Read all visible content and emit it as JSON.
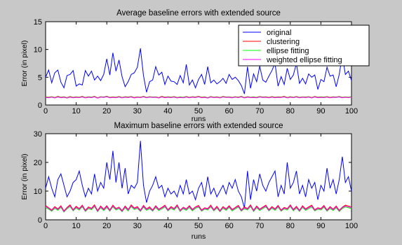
{
  "chart_data": [
    {
      "type": "line",
      "title": "Average baseline errors with extended source",
      "xlabel": "runs",
      "ylabel": "Error (in pixel)",
      "xlim": [
        0,
        100
      ],
      "ylim": [
        0,
        15
      ],
      "xticks": [
        "0",
        "10",
        "20",
        "30",
        "40",
        "50",
        "60",
        "70",
        "80",
        "90",
        "100"
      ],
      "yticks": [
        "0",
        "5",
        "10",
        "15"
      ],
      "legend_position": "top-right",
      "series": [
        {
          "name": "original",
          "color": "#0000ff",
          "values": [
            5.0,
            6.3,
            4.0,
            5.8,
            6.3,
            4.1,
            3.1,
            5.3,
            5.5,
            6.2,
            3.4,
            3.8,
            3.6,
            6.2,
            5.2,
            6.1,
            4.5,
            5.2,
            4.4,
            5.5,
            8.3,
            5.4,
            9.4,
            6.1,
            8.1,
            5.1,
            3.3,
            4.2,
            5.5,
            5.8,
            6.8,
            10.2,
            5.3,
            2.3,
            4.2,
            4.5,
            6.9,
            5.4,
            5.9,
            3.7,
            5.2,
            4.3,
            4.2,
            3.7,
            5.3,
            4.0,
            7.3,
            3.6,
            4.5,
            3.1,
            4.6,
            5.5,
            3.7,
            6.9,
            4.0,
            4.5,
            3.8,
            4.2,
            4.8,
            3.9,
            5.5,
            4.6,
            5.0,
            4.4,
            3.5,
            2.0,
            6.9,
            3.0,
            5.6,
            4.2,
            7.0,
            4.5,
            4.1,
            5.2,
            6.2,
            7.5,
            3.4,
            5.1,
            3.7,
            6.6,
            4.6,
            5.4,
            7.5,
            3.9,
            4.8,
            3.8,
            5.6,
            5.0,
            5.4,
            2.8,
            4.6,
            4.2,
            6.8,
            5.2,
            5.4,
            3.3,
            5.5,
            9.0,
            5.5,
            6.1,
            4.4
          ]
        },
        {
          "name": "clustering",
          "color": "#ff0000",
          "values": [
            1.45,
            1.4,
            1.5,
            1.35,
            1.55,
            1.4,
            1.48,
            1.32,
            1.52,
            1.38,
            1.46,
            1.41,
            1.55,
            1.36,
            1.48,
            1.42,
            1.56,
            1.3,
            1.5,
            1.44,
            1.58,
            1.38,
            1.46,
            1.4,
            1.53,
            1.36,
            1.49,
            1.43,
            1.52,
            1.35,
            1.47,
            1.41,
            1.56,
            1.38,
            1.5,
            1.44,
            1.47,
            1.34,
            1.55,
            1.4,
            1.48,
            1.42,
            1.51,
            1.36,
            1.45,
            1.39,
            1.53,
            1.37,
            1.49,
            1.43,
            1.56,
            1.4,
            1.46,
            1.33,
            1.52,
            1.41,
            1.48,
            1.36,
            1.54,
            1.44,
            1.47,
            1.38,
            1.5,
            1.42,
            1.56,
            1.35,
            1.49,
            1.41,
            1.45,
            1.39,
            1.53,
            1.43,
            1.48,
            1.37,
            1.51,
            1.4,
            1.46,
            1.44,
            1.55,
            1.36,
            1.49,
            1.41,
            1.52,
            1.38,
            1.47,
            1.43,
            1.5,
            1.35,
            1.54,
            1.4,
            1.46,
            1.42,
            1.51,
            1.37,
            1.48,
            1.44,
            1.53,
            1.39,
            1.47,
            1.41,
            1.5
          ]
        },
        {
          "name": "ellipse fitting",
          "color": "#00ff00",
          "values": [
            1.4,
            1.36,
            1.46,
            1.31,
            1.5,
            1.36,
            1.44,
            1.29,
            1.47,
            1.34,
            1.42,
            1.37,
            1.5,
            1.32,
            1.44,
            1.38,
            1.51,
            1.27,
            1.46,
            1.4,
            1.53,
            1.34,
            1.42,
            1.36,
            1.48,
            1.32,
            1.45,
            1.39,
            1.48,
            1.31,
            1.43,
            1.37,
            1.51,
            1.34,
            1.46,
            1.4,
            1.43,
            1.3,
            1.5,
            1.36,
            1.44,
            1.38,
            1.47,
            1.32,
            1.41,
            1.35,
            1.48,
            1.33,
            1.45,
            1.39,
            1.51,
            1.36,
            1.42,
            1.29,
            1.48,
            1.37,
            1.44,
            1.32,
            1.49,
            1.4,
            1.43,
            1.34,
            1.46,
            1.38,
            1.51,
            1.31,
            1.45,
            1.37,
            1.41,
            1.35,
            1.48,
            1.39,
            1.44,
            1.33,
            1.47,
            1.36,
            1.42,
            1.4,
            1.5,
            1.32,
            1.45,
            1.37,
            1.48,
            1.34,
            1.43,
            1.39,
            1.46,
            1.31,
            1.49,
            1.36,
            1.42,
            1.38,
            1.47,
            1.33,
            1.44,
            1.4,
            1.48,
            1.35,
            1.43,
            1.37,
            1.46
          ]
        },
        {
          "name": "weighted ellipse fitting",
          "color": "#ff00ff",
          "values": [
            1.35,
            1.31,
            1.41,
            1.27,
            1.45,
            1.31,
            1.39,
            1.25,
            1.42,
            1.29,
            1.37,
            1.32,
            1.45,
            1.28,
            1.39,
            1.33,
            1.46,
            1.23,
            1.41,
            1.35,
            1.48,
            1.29,
            1.37,
            1.31,
            1.43,
            1.28,
            1.4,
            1.34,
            1.43,
            1.27,
            1.38,
            1.32,
            1.46,
            1.29,
            1.41,
            1.35,
            1.38,
            1.26,
            1.45,
            1.31,
            1.39,
            1.33,
            1.42,
            1.28,
            1.36,
            1.3,
            1.43,
            1.29,
            1.4,
            1.34,
            1.46,
            1.31,
            1.37,
            1.25,
            1.43,
            1.32,
            1.39,
            1.28,
            1.44,
            1.35,
            1.38,
            1.29,
            1.41,
            1.33,
            1.46,
            1.27,
            1.4,
            1.32,
            1.36,
            1.3,
            1.43,
            1.34,
            1.39,
            1.29,
            1.42,
            1.31,
            1.37,
            1.35,
            1.45,
            1.28,
            1.4,
            1.32,
            1.43,
            1.29,
            1.38,
            1.34,
            1.41,
            1.27,
            1.44,
            1.31,
            1.37,
            1.33,
            1.42,
            1.29,
            1.39,
            1.35,
            1.43,
            1.3,
            1.38,
            1.32,
            1.41
          ]
        }
      ]
    },
    {
      "type": "line",
      "title": "Maximum baseline errors with extended source",
      "xlabel": "runs",
      "ylabel": "Error (in pixel)",
      "xlim": [
        0,
        100
      ],
      "ylim": [
        0,
        30
      ],
      "xticks": [
        "0",
        "10",
        "20",
        "30",
        "40",
        "50",
        "60",
        "70",
        "80",
        "90",
        "100"
      ],
      "yticks": [
        "0",
        "10",
        "20",
        "30"
      ],
      "series": [
        {
          "name": "original",
          "color": "#0000ff",
          "values": [
            11,
            15,
            11,
            8,
            14,
            16,
            12,
            8,
            10,
            13,
            14,
            17,
            12,
            8,
            11,
            9,
            16,
            10,
            13,
            11,
            20,
            14,
            24,
            13,
            20,
            11,
            18,
            9,
            12,
            11,
            13,
            27.5,
            12,
            6,
            10,
            12,
            15,
            11,
            12,
            8,
            11,
            9,
            10,
            8,
            12,
            9,
            14,
            9,
            10,
            7,
            11,
            13,
            8,
            15,
            9,
            11,
            8,
            10,
            12,
            9,
            13,
            11,
            14,
            10,
            8,
            4,
            17,
            7,
            14,
            10,
            16,
            12,
            10,
            13,
            15,
            17,
            8,
            12,
            9,
            20,
            11,
            13,
            17,
            9,
            12,
            8,
            14,
            11,
            13,
            7,
            12,
            10,
            18,
            11,
            14,
            9,
            14,
            22,
            13,
            15,
            10
          ]
        },
        {
          "name": "clustering",
          "color": "#ff0000",
          "values": [
            5.0,
            4.2,
            3.4,
            4.6,
            3.8,
            4.9,
            3.1,
            4.3,
            5.2,
            3.5,
            4.7,
            3.9,
            5.1,
            3.3,
            4.5,
            4.0,
            5.2,
            3.2,
            4.8,
            3.7,
            4.9,
            3.4,
            5.1,
            3.9,
            4.4,
            3.2,
            4.8,
            3.6,
            5.2,
            4.1,
            4.6,
            3.3,
            5.0,
            3.8,
            4.5,
            3.4,
            4.9,
            3.7,
            4.3,
            5.1,
            3.5,
            4.6,
            3.9,
            5.2,
            3.3,
            4.4,
            3.8,
            4.9,
            3.6,
            4.5,
            5.0,
            3.4,
            4.2,
            3.9,
            5.1,
            3.5,
            4.7,
            3.2,
            4.6,
            3.8,
            4.9,
            3.6,
            4.3,
            5.0,
            3.4,
            4.5,
            3.9,
            5.2,
            3.3,
            4.8,
            3.7,
            4.4,
            5.1,
            3.5,
            4.6,
            3.8,
            5.0,
            3.4,
            4.3,
            3.9,
            5.2,
            3.6,
            4.7,
            3.3,
            4.9,
            3.8,
            4.5,
            5.1,
            3.5,
            4.2,
            3.9,
            5.0,
            3.4,
            4.6,
            3.7,
            4.8,
            3.3,
            4.4,
            5.1,
            4.8,
            4.5
          ]
        },
        {
          "name": "ellipse fitting",
          "color": "#00ff00",
          "values": [
            4.3,
            3.7,
            3.0,
            4.0,
            3.3,
            4.3,
            2.7,
            3.8,
            4.6,
            3.1,
            4.1,
            3.4,
            4.5,
            2.9,
            3.9,
            3.5,
            4.6,
            2.8,
            4.2,
            3.2,
            4.3,
            3.0,
            4.5,
            3.4,
            3.9,
            2.8,
            4.2,
            3.1,
            4.6,
            3.6,
            4.0,
            2.9,
            4.4,
            3.3,
            3.9,
            3.0,
            4.3,
            3.2,
            3.8,
            4.5,
            3.1,
            4.0,
            3.4,
            4.6,
            2.9,
            3.9,
            3.3,
            4.3,
            3.1,
            4.0,
            4.4,
            3.0,
            3.7,
            3.4,
            4.5,
            3.1,
            4.1,
            2.8,
            4.0,
            3.3,
            4.3,
            3.1,
            3.8,
            4.4,
            3.0,
            3.9,
            3.4,
            4.6,
            2.9,
            4.2,
            3.2,
            3.9,
            4.5,
            3.1,
            4.0,
            3.3,
            4.4,
            3.0,
            3.8,
            3.4,
            4.6,
            3.1,
            4.1,
            2.9,
            4.3,
            3.3,
            3.9,
            4.5,
            3.1,
            3.7,
            3.4,
            4.4,
            3.0,
            4.0,
            3.2,
            4.2,
            2.9,
            3.9,
            4.5,
            4.2,
            3.9
          ]
        },
        {
          "name": "weighted ellipse fitting",
          "color": "#ff00ff",
          "values": [
            4.6,
            4.0,
            3.2,
            4.3,
            3.6,
            4.6,
            2.9,
            4.1,
            4.9,
            3.3,
            4.4,
            3.7,
            4.8,
            3.1,
            4.2,
            3.8,
            4.9,
            3.0,
            4.5,
            3.5,
            4.6,
            3.2,
            4.8,
            3.7,
            4.2,
            3.0,
            4.5,
            3.4,
            4.9,
            3.9,
            4.3,
            3.1,
            4.7,
            3.6,
            4.2,
            3.2,
            4.6,
            3.5,
            4.1,
            4.8,
            3.3,
            4.3,
            3.7,
            4.9,
            3.1,
            4.2,
            3.6,
            4.6,
            3.4,
            4.3,
            4.7,
            3.2,
            4.0,
            3.7,
            4.8,
            3.3,
            4.4,
            3.0,
            4.3,
            3.6,
            4.6,
            3.4,
            4.1,
            4.7,
            3.2,
            4.2,
            3.7,
            4.9,
            3.1,
            4.5,
            3.5,
            4.2,
            4.8,
            3.3,
            4.3,
            3.6,
            4.7,
            3.2,
            4.1,
            3.7,
            4.9,
            3.4,
            4.4,
            3.1,
            4.6,
            3.6,
            4.2,
            4.8,
            3.3,
            4.0,
            3.7,
            4.7,
            3.2,
            4.3,
            3.5,
            4.5,
            3.1,
            4.2,
            4.8,
            4.5,
            4.2
          ]
        }
      ]
    }
  ]
}
